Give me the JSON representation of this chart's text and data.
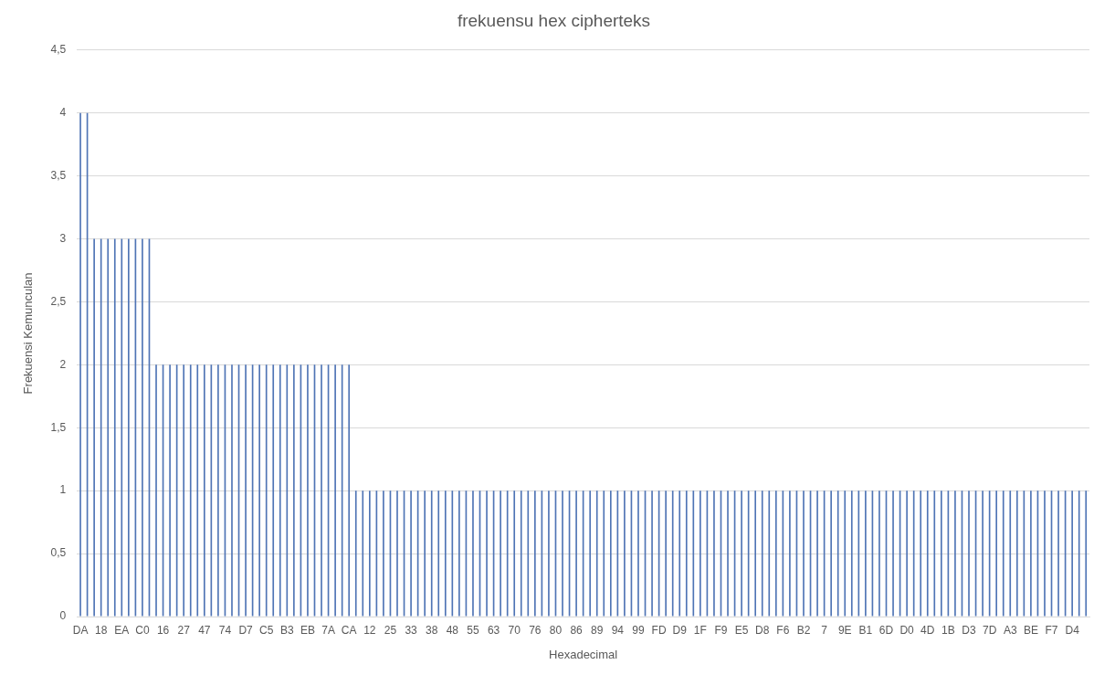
{
  "chart_data": {
    "type": "bar",
    "title": "frekuensu hex cipherteks",
    "xlabel": "Hexadecimal",
    "ylabel": "Frekuensi Kemunculan",
    "categories": [
      "DA",
      null,
      null,
      "18",
      null,
      null,
      "EA",
      null,
      null,
      "C0",
      null,
      null,
      "16",
      null,
      null,
      "27",
      null,
      null,
      "47",
      null,
      null,
      "74",
      null,
      null,
      "D7",
      null,
      null,
      "C5",
      null,
      null,
      "B3",
      null,
      null,
      "EB",
      null,
      null,
      "7A",
      null,
      null,
      "CA",
      null,
      null,
      "12",
      null,
      null,
      "25",
      null,
      null,
      "33",
      null,
      null,
      "38",
      null,
      null,
      "48",
      null,
      null,
      "55",
      null,
      null,
      "63",
      null,
      null,
      "70",
      null,
      null,
      "76",
      null,
      null,
      "80",
      null,
      null,
      "86",
      null,
      null,
      "89",
      null,
      null,
      "94",
      null,
      null,
      "99",
      null,
      null,
      "FD",
      null,
      null,
      "D9",
      null,
      null,
      "1F",
      null,
      null,
      "F9",
      null,
      null,
      "E5",
      null,
      null,
      "D8",
      null,
      null,
      "F6",
      null,
      null,
      "B2",
      null,
      null,
      "7",
      null,
      null,
      "9E",
      null,
      null,
      "B1",
      null,
      null,
      "6D",
      null,
      null,
      "D0",
      null,
      null,
      "4D",
      null,
      null,
      "1B",
      null,
      null,
      "D3",
      null,
      null,
      "7D",
      null,
      null,
      "A3",
      null,
      null,
      "BE",
      null,
      null,
      "F7",
      null,
      null,
      "D4",
      null,
      null
    ],
    "values": [
      4,
      4,
      3,
      3,
      3,
      3,
      3,
      3,
      3,
      3,
      3,
      2,
      2,
      2,
      2,
      2,
      2,
      2,
      2,
      2,
      2,
      2,
      2,
      2,
      2,
      2,
      2,
      2,
      2,
      2,
      2,
      2,
      2,
      2,
      2,
      2,
      2,
      2,
      2,
      2,
      1,
      1,
      1,
      1,
      1,
      1,
      1,
      1,
      1,
      1,
      1,
      1,
      1,
      1,
      1,
      1,
      1,
      1,
      1,
      1,
      1,
      1,
      1,
      1,
      1,
      1,
      1,
      1,
      1,
      1,
      1,
      1,
      1,
      1,
      1,
      1,
      1,
      1,
      1,
      1,
      1,
      1,
      1,
      1,
      1,
      1,
      1,
      1,
      1,
      1,
      1,
      1,
      1,
      1,
      1,
      1,
      1,
      1,
      1,
      1,
      1,
      1,
      1,
      1,
      1,
      1,
      1,
      1,
      1,
      1,
      1,
      1,
      1,
      1,
      1,
      1,
      1,
      1,
      1,
      1,
      1,
      1,
      1,
      1,
      1,
      1,
      1,
      1,
      1,
      1,
      1,
      1,
      1,
      1,
      1,
      1,
      1,
      1,
      1,
      1,
      1,
      1,
      1,
      1,
      1,
      1,
      1
    ],
    "color": "#4f74b5",
    "ylim": [
      0,
      4.5
    ],
    "yticks": [
      0,
      {
        "value": 0.5,
        "label": "0,5"
      },
      1,
      {
        "value": 1.5,
        "label": "1,5"
      },
      2,
      {
        "value": 2.5,
        "label": "2,5"
      },
      3,
      {
        "value": 3.5,
        "label": "3,5"
      },
      4,
      {
        "value": 4.5,
        "label": "4,5"
      }
    ],
    "grid": "y",
    "legend": false
  }
}
